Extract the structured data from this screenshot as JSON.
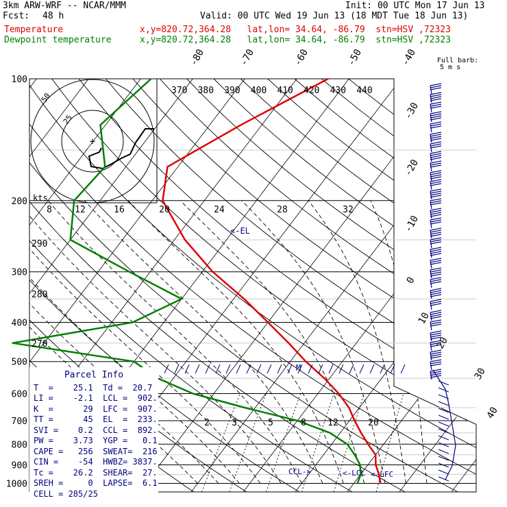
{
  "header": {
    "model": "3km ARW-WRF -- NCAR/MMM",
    "init": "Init: 00 UTC Mon 17 Jun 13",
    "fcst_label": "Fcst:",
    "fcst_value": "48 h",
    "valid": "Valid: 00 UTC Wed 19 Jun 13 (18 MDT Tue 18 Jun 13)",
    "legend": [
      {
        "name": "Temperature",
        "info": "x,y=820.72,364.28   lat,lon= 34.64, -86.79  stn=HSV ,72323",
        "color": "#e00000"
      },
      {
        "name": "Dewpoint temperature",
        "info": "x,y=820.72,364.28   lat,lon= 34.64, -86.79  stn=HSV ,72323",
        "color": "#008000"
      }
    ]
  },
  "wind_key": {
    "line1": "Full barb:",
    "line2": "5 m s"
  },
  "hodograph": {
    "kts_label": "kts",
    "ring_labels": [
      "50",
      "25"
    ],
    "center_mark": "+"
  },
  "annotations": {
    "el": "<-EL",
    "m": "M",
    "ccl": "CCL->",
    "lcl": "<-LCL",
    "lfc": "<-LFC"
  },
  "parcel_info": {
    "title": "Parcel Info",
    "rows": [
      "T  =    25.1  Td =  20.7",
      "LI =    -2.1  LCL =  902.",
      "K  =      29  LFC =  907.",
      "TT =      45  EL  =  233.",
      "SVI =    0.2  CCL =  892.",
      "PW =    3.73  YGP =   0.1",
      "CAPE =   256  SWEAT=  216",
      "CIN =    -54  HWBZ= 3837.",
      "Tc =    26.2  SHEAR=  27.",
      "SREH =     0  LAPSE=  6.1",
      "CELL = 285/25"
    ]
  },
  "chart_data": {
    "type": "line",
    "title": "",
    "pressure_levels": [
      100,
      200,
      300,
      400,
      500,
      600,
      700,
      800,
      900,
      1000
    ],
    "pressure_labels": [
      "100",
      "200",
      "300",
      "400",
      "500",
      "600",
      "700",
      "800",
      "900",
      "1000"
    ],
    "isotherm_labels": [
      "-80",
      "-70",
      "-60",
      "-50",
      "-40",
      "-30",
      "-20",
      "-10",
      "0",
      "10",
      "20",
      "30",
      "40"
    ],
    "theta_labels": [
      "370",
      "380",
      "390",
      "400",
      "410",
      "420",
      "430",
      "440"
    ],
    "theta_side_labels": [
      "290",
      "280",
      "270"
    ],
    "wind_scale_labels": [
      "8",
      "12",
      "16",
      "20",
      "24",
      "28",
      "32"
    ],
    "mixing_ratio_labels": [
      "2",
      "3",
      "5",
      "8",
      "12",
      "20"
    ],
    "series": [
      {
        "name": "Temperature",
        "color": "#e00000",
        "points": [
          [
            100,
            -44
          ],
          [
            130,
            -54
          ],
          [
            165,
            -62
          ],
          [
            200,
            -58
          ],
          [
            250,
            -48
          ],
          [
            300,
            -38
          ],
          [
            350,
            -28
          ],
          [
            400,
            -20
          ],
          [
            450,
            -13
          ],
          [
            500,
            -7
          ],
          [
            550,
            -1
          ],
          [
            600,
            4
          ],
          [
            650,
            8
          ],
          [
            700,
            11
          ],
          [
            750,
            14
          ],
          [
            800,
            17
          ],
          [
            850,
            20
          ],
          [
            900,
            21.5
          ],
          [
            950,
            23.5
          ],
          [
            1000,
            25.1
          ]
        ]
      },
      {
        "name": "Dewpoint temperature",
        "color": "#008000",
        "points": [
          [
            100,
            -78
          ],
          [
            130,
            -81
          ],
          [
            165,
            -74
          ],
          [
            200,
            -75
          ],
          [
            250,
            -70
          ],
          [
            300,
            -54
          ],
          [
            350,
            -40
          ],
          [
            400,
            -46
          ],
          [
            450,
            -66
          ],
          [
            500,
            -40
          ],
          [
            550,
            -33
          ],
          [
            600,
            -24
          ],
          [
            650,
            -12
          ],
          [
            700,
            0
          ],
          [
            750,
            8
          ],
          [
            800,
            13
          ],
          [
            850,
            16
          ],
          [
            900,
            18.5
          ],
          [
            950,
            20
          ],
          [
            1000,
            20.7
          ]
        ]
      }
    ]
  }
}
